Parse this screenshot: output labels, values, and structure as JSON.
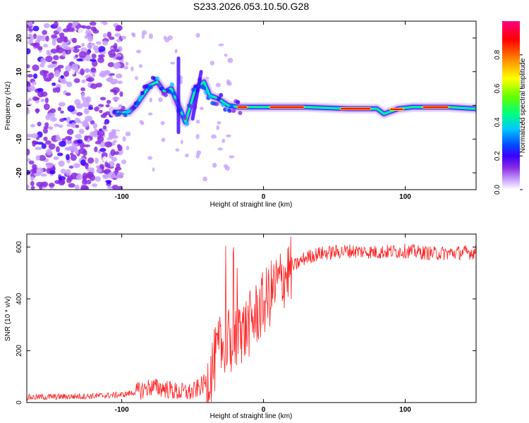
{
  "title": "S233.2026.053.10.50.G28",
  "chart_data": [
    {
      "type": "heatmap",
      "xlabel": "Height of straight line (km)",
      "ylabel": "Frequency (Hz)",
      "xlim": [
        -167,
        150
      ],
      "ylim": [
        -25,
        25
      ],
      "xticks": [
        -100,
        0,
        100
      ],
      "yticks": [
        -20,
        -10,
        0,
        10,
        20
      ],
      "colorbar": {
        "label": "Normalized spectral amplitude",
        "range": [
          0,
          1
        ],
        "ticks": [
          "0.0",
          "0.2",
          "0.4",
          "0.6",
          "0.8"
        ],
        "colors": [
          "#ffffff",
          "#c8a0ff",
          "#8a2be2",
          "#3a00ff",
          "#0050ff",
          "#00c8ff",
          "#00ff80",
          "#60ff00",
          "#ffff00",
          "#ff8000",
          "#ff0000",
          "#ff0080"
        ]
      },
      "ridge": [
        [
          -105,
          -2
        ],
        [
          -95,
          -2
        ],
        [
          -90,
          0
        ],
        [
          -85,
          3
        ],
        [
          -80,
          6
        ],
        [
          -75,
          7
        ],
        [
          -70,
          4
        ],
        [
          -65,
          5
        ],
        [
          -60,
          0
        ],
        [
          -55,
          -5
        ],
        [
          -48,
          5
        ],
        [
          -42,
          7
        ],
        [
          -38,
          3
        ],
        [
          -32,
          2
        ],
        [
          -25,
          0
        ],
        [
          -18,
          -0.5
        ],
        [
          -10,
          -0.5
        ],
        [
          0,
          -0.5
        ],
        [
          30,
          -0.5
        ],
        [
          60,
          -1
        ],
        [
          80,
          -1
        ],
        [
          85,
          -2.5
        ],
        [
          95,
          -1
        ],
        [
          105,
          -0.5
        ],
        [
          130,
          -0.5
        ],
        [
          150,
          -1
        ]
      ],
      "noise_region": [
        -167,
        -100
      ]
    },
    {
      "type": "line",
      "xlabel": "Height of straight line (km)",
      "ylabel": "SNR (10 * v/v)",
      "xlim": [
        -167,
        150
      ],
      "ylim": [
        0,
        650
      ],
      "xticks": [
        -100,
        0,
        100
      ],
      "yticks": [
        0,
        200,
        400,
        600
      ],
      "color": "#ff2020",
      "envelope": {
        "x": [
          -167,
          -120,
          -100,
          -90,
          -80,
          -70,
          -60,
          -50,
          -40,
          -30,
          -20,
          -10,
          0,
          10,
          20,
          30,
          40,
          60,
          80,
          100,
          120,
          150
        ],
        "y": [
          20,
          25,
          30,
          40,
          60,
          55,
          40,
          40,
          80,
          220,
          240,
          300,
          380,
          460,
          520,
          560,
          575,
          585,
          580,
          585,
          575,
          580
        ]
      }
    }
  ]
}
